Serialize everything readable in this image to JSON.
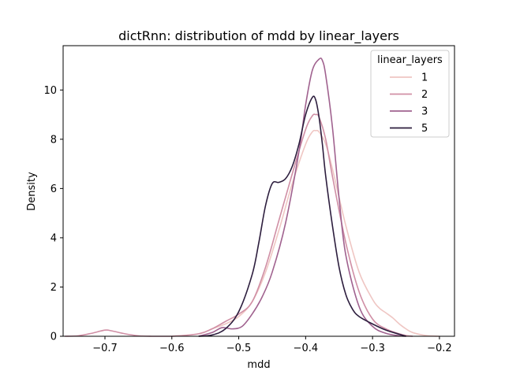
{
  "chart_data": {
    "type": "line",
    "title": "dictRnn: distribution of mdd by linear_layers",
    "xlabel": "mdd",
    "ylabel": "Density",
    "xlim": [
      -0.7625,
      -0.1775
    ],
    "ylim": [
      0,
      11.8
    ],
    "xticks": [
      -0.7,
      -0.6,
      -0.5,
      -0.4,
      -0.3,
      -0.2
    ],
    "xtick_labels": [
      "−0.7",
      "−0.6",
      "−0.5",
      "−0.4",
      "−0.3",
      "−0.2"
    ],
    "yticks": [
      0,
      2,
      4,
      6,
      8,
      10
    ],
    "ytick_labels": [
      "0",
      "2",
      "4",
      "6",
      "8",
      "10"
    ],
    "grid": false,
    "legend": {
      "title": "linear_layers",
      "placement": "top-right"
    },
    "series": [
      {
        "name": "1",
        "color": "#efc6c3",
        "x": [
          -0.6,
          -0.56,
          -0.54,
          -0.52,
          -0.5,
          -0.48,
          -0.46,
          -0.44,
          -0.42,
          -0.4,
          -0.39,
          -0.385,
          -0.38,
          -0.37,
          -0.36,
          -0.34,
          -0.32,
          -0.3,
          -0.29,
          -0.28,
          -0.27,
          -0.26,
          -0.25,
          -0.24,
          -0.22,
          -0.2
        ],
        "y": [
          0.0,
          0.1,
          0.3,
          0.5,
          0.8,
          1.4,
          2.6,
          4.3,
          6.2,
          7.8,
          8.3,
          8.35,
          8.3,
          7.8,
          6.8,
          4.5,
          2.6,
          1.5,
          1.15,
          0.95,
          0.75,
          0.5,
          0.3,
          0.15,
          0.03,
          0.0
        ]
      },
      {
        "name": "2",
        "color": "#d08fa5",
        "x": [
          -0.76,
          -0.74,
          -0.72,
          -0.7,
          -0.69,
          -0.67,
          -0.65,
          -0.63,
          -0.6,
          -0.56,
          -0.54,
          -0.52,
          -0.5,
          -0.48,
          -0.46,
          -0.44,
          -0.42,
          -0.4,
          -0.39,
          -0.385,
          -0.38,
          -0.37,
          -0.36,
          -0.34,
          -0.32,
          -0.3,
          -0.28,
          -0.26,
          -0.25,
          -0.24
        ],
        "y": [
          0.0,
          0.02,
          0.12,
          0.25,
          0.22,
          0.1,
          0.02,
          0.0,
          0.0,
          0.1,
          0.3,
          0.6,
          0.9,
          1.4,
          2.8,
          4.7,
          6.6,
          8.4,
          8.95,
          9.0,
          8.9,
          8.0,
          6.5,
          3.8,
          1.8,
          0.7,
          0.3,
          0.1,
          0.03,
          0.0
        ]
      },
      {
        "name": "3",
        "color": "#a0628f",
        "x": [
          -0.56,
          -0.54,
          -0.525,
          -0.51,
          -0.495,
          -0.48,
          -0.465,
          -0.45,
          -0.43,
          -0.41,
          -0.4,
          -0.39,
          -0.38,
          -0.375,
          -0.37,
          -0.36,
          -0.35,
          -0.34,
          -0.32,
          -0.3,
          -0.28,
          -0.26,
          -0.25
        ],
        "y": [
          0.0,
          0.15,
          0.35,
          0.3,
          0.4,
          0.9,
          1.6,
          2.6,
          4.6,
          7.5,
          9.4,
          10.8,
          11.25,
          11.2,
          10.6,
          8.5,
          5.6,
          3.3,
          1.2,
          0.4,
          0.12,
          0.02,
          0.0
        ]
      },
      {
        "name": "5",
        "color": "#2d1e3e",
        "x": [
          -0.56,
          -0.54,
          -0.52,
          -0.5,
          -0.48,
          -0.47,
          -0.46,
          -0.45,
          -0.44,
          -0.43,
          -0.42,
          -0.41,
          -0.4,
          -0.39,
          -0.385,
          -0.38,
          -0.375,
          -0.37,
          -0.36,
          -0.35,
          -0.34,
          -0.33,
          -0.32,
          -0.3,
          -0.28,
          -0.26,
          -0.25
        ],
        "y": [
          0.0,
          0.05,
          0.3,
          1.0,
          2.5,
          3.8,
          5.3,
          6.2,
          6.25,
          6.4,
          6.9,
          7.8,
          9.0,
          9.7,
          9.6,
          8.9,
          7.8,
          6.5,
          4.5,
          2.8,
          1.7,
          1.1,
          0.8,
          0.5,
          0.25,
          0.08,
          0.0
        ]
      }
    ]
  }
}
